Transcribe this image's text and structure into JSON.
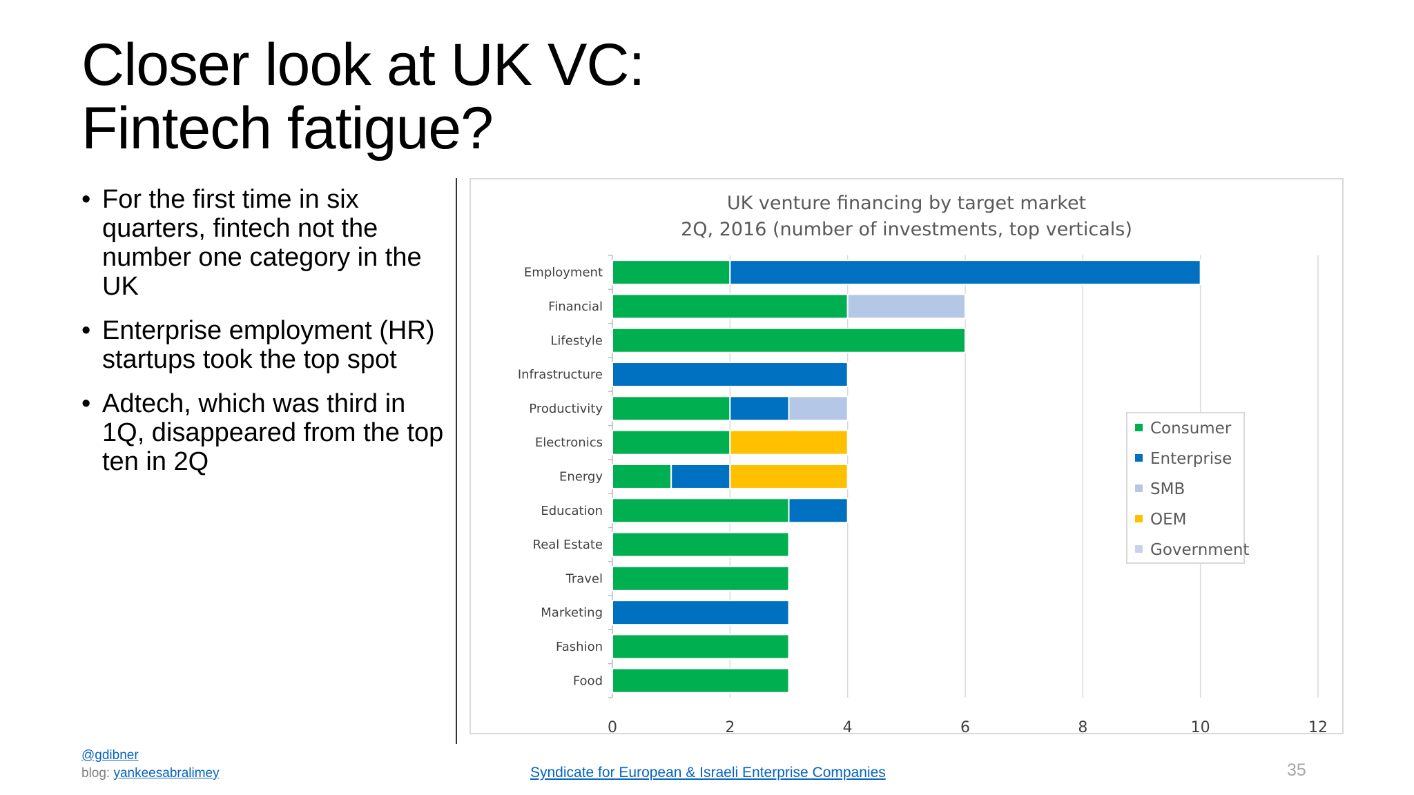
{
  "slide": {
    "title_line1": "Closer look at UK VC:",
    "title_line2": "Fintech fatigue?",
    "bullets": [
      "For the first time in six quarters, fintech not the number one category in the UK",
      "Enterprise employment (HR) startups took the top spot",
      "Adtech, which was third in 1Q, disappeared from the top ten in 2Q"
    ],
    "bullet_glyph": "•",
    "footer": {
      "handle": "@gdibner",
      "blog_prefix": "blog:",
      "blog_link": "yankeesabralimey",
      "center_link": "Syndicate for European & Israeli Enterprise Companies",
      "page_number": "35"
    }
  },
  "chart_data": {
    "type": "bar",
    "orientation": "horizontal",
    "stacked": true,
    "title_line1": "UK venture financing by target market",
    "title_line2": "2Q, 2016 (number of investments, top verticals)",
    "categories": [
      "Employment",
      "Financial",
      "Lifestyle",
      "Infrastructure",
      "Productivity",
      "Electronics",
      "Energy",
      "Education",
      "Real Estate",
      "Travel",
      "Marketing",
      "Fashion",
      "Food"
    ],
    "series": [
      {
        "name": "Consumer",
        "color": "#00b050",
        "values": [
          2,
          4,
          6,
          0,
          2,
          2,
          1,
          3,
          3,
          3,
          0,
          3,
          3
        ]
      },
      {
        "name": "Enterprise",
        "color": "#0070c0",
        "values": [
          8,
          0,
          0,
          4,
          1,
          0,
          1,
          1,
          0,
          0,
          3,
          0,
          0
        ]
      },
      {
        "name": "SMB",
        "color": "#b4c7e7",
        "values": [
          0,
          2,
          0,
          0,
          1,
          0,
          0,
          0,
          0,
          0,
          0,
          0,
          0
        ]
      },
      {
        "name": "OEM",
        "color": "#ffc000",
        "values": [
          0,
          0,
          0,
          0,
          0,
          2,
          2,
          0,
          0,
          0,
          0,
          0,
          0
        ]
      },
      {
        "name": "Government",
        "color": "#c5d3ee",
        "values": [
          0,
          0,
          0,
          0,
          0,
          0,
          0,
          0,
          0,
          0,
          0,
          0,
          0
        ]
      }
    ],
    "xlim": [
      0,
      12
    ],
    "xticks": [
      "0",
      "2",
      "4",
      "6",
      "8",
      "10",
      "12"
    ],
    "grid": "vertical",
    "legend_position": "right"
  }
}
